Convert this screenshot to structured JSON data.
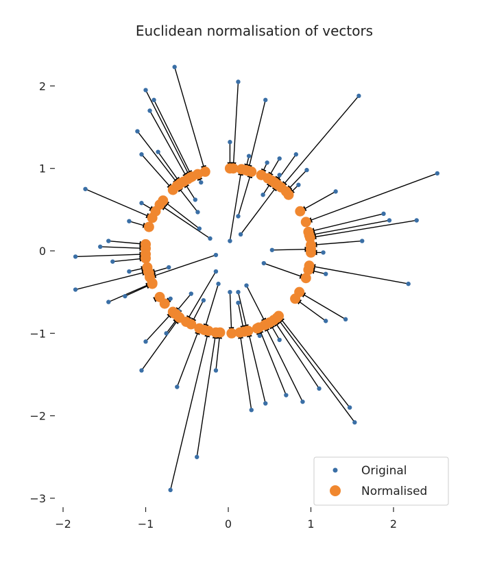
{
  "chart_data": {
    "type": "scatter",
    "title": "Euclidean normalisation of vectors",
    "xlabel": "",
    "ylabel": "",
    "xlim": [
      -2.0,
      2.7
    ],
    "ylim": [
      -3.0,
      2.3
    ],
    "xticks": [
      -2,
      -1,
      0,
      1,
      2
    ],
    "xtick_labels": [
      "−2",
      "−1",
      "0",
      "1",
      "2"
    ],
    "yticks": [
      -3,
      -2,
      -1,
      0,
      1,
      2
    ],
    "ytick_labels": [
      "−3",
      "−2",
      "−1",
      "0",
      "1",
      "2"
    ],
    "grid": false,
    "legend": "bottom-right",
    "colors": {
      "original": "#3a6fa6",
      "normalised": "#f0872f",
      "arrow": "#000000"
    },
    "series": [
      {
        "name": "Original",
        "marker": "small-dot",
        "points": [
          [
            -0.65,
            2.23
          ],
          [
            0.12,
            2.05
          ],
          [
            1.58,
            1.88
          ],
          [
            -1.0,
            1.95
          ],
          [
            -0.9,
            1.83
          ],
          [
            -0.95,
            1.7
          ],
          [
            0.45,
            1.83
          ],
          [
            -1.1,
            1.45
          ],
          [
            -1.05,
            1.17
          ],
          [
            -0.85,
            1.2
          ],
          [
            0.02,
            1.32
          ],
          [
            0.25,
            1.15
          ],
          [
            0.47,
            1.07
          ],
          [
            0.62,
            1.12
          ],
          [
            0.82,
            1.17
          ],
          [
            0.95,
            0.98
          ],
          [
            0.85,
            0.8
          ],
          [
            0.62,
            0.92
          ],
          [
            -1.73,
            0.75
          ],
          [
            -0.33,
            0.83
          ],
          [
            -0.37,
            0.47
          ],
          [
            -0.4,
            0.62
          ],
          [
            0.42,
            0.68
          ],
          [
            2.53,
            0.94
          ],
          [
            1.3,
            0.72
          ],
          [
            1.88,
            0.45
          ],
          [
            1.95,
            0.37
          ],
          [
            2.28,
            0.37
          ],
          [
            1.62,
            0.12
          ],
          [
            -1.05,
            0.58
          ],
          [
            -1.2,
            0.36
          ],
          [
            -0.35,
            0.27
          ],
          [
            -0.22,
            0.15
          ],
          [
            0.15,
            0.2
          ],
          [
            0.12,
            0.42
          ],
          [
            0.02,
            0.12
          ],
          [
            -1.45,
            0.12
          ],
          [
            -1.55,
            0.05
          ],
          [
            -1.85,
            -0.07
          ],
          [
            -1.4,
            -0.13
          ],
          [
            -1.2,
            -0.25
          ],
          [
            -1.85,
            -0.47
          ],
          [
            -0.15,
            -0.05
          ],
          [
            0.53,
            0.01
          ],
          [
            1.15,
            -0.02
          ],
          [
            1.18,
            -0.28
          ],
          [
            0.43,
            -0.15
          ],
          [
            2.18,
            -0.4
          ],
          [
            -1.45,
            -0.62
          ],
          [
            -1.25,
            -0.55
          ],
          [
            -0.72,
            -0.2
          ],
          [
            -0.12,
            -0.4
          ],
          [
            -0.15,
            -0.25
          ],
          [
            1.42,
            -0.83
          ],
          [
            1.18,
            -0.85
          ],
          [
            -0.7,
            -0.58
          ],
          [
            -0.85,
            -0.57
          ],
          [
            -0.45,
            -0.52
          ],
          [
            -0.3,
            -0.6
          ],
          [
            -0.6,
            -0.73
          ],
          [
            -0.75,
            -1.0
          ],
          [
            -1.0,
            -1.1
          ],
          [
            -1.05,
            -1.45
          ],
          [
            -0.62,
            -1.65
          ],
          [
            -0.38,
            -2.5
          ],
          [
            -0.7,
            -2.9
          ],
          [
            -0.15,
            -1.45
          ],
          [
            0.02,
            -0.5
          ],
          [
            0.12,
            -0.5
          ],
          [
            0.22,
            -0.42
          ],
          [
            0.12,
            -0.63
          ],
          [
            0.28,
            -1.93
          ],
          [
            0.45,
            -1.85
          ],
          [
            0.7,
            -1.75
          ],
          [
            0.9,
            -1.83
          ],
          [
            1.1,
            -1.67
          ],
          [
            1.47,
            -1.9
          ],
          [
            1.53,
            -2.08
          ],
          [
            0.38,
            -1.03
          ],
          [
            0.62,
            -1.08
          ]
        ]
      },
      {
        "name": "Normalised",
        "marker": "large-dot",
        "points": [
          [
            -0.28,
            0.96
          ],
          [
            0.06,
            1.0
          ],
          [
            0.64,
            0.77
          ],
          [
            -0.46,
            0.89
          ],
          [
            -0.44,
            0.9
          ],
          [
            -0.49,
            0.87
          ],
          [
            0.24,
            0.97
          ],
          [
            -0.6,
            0.8
          ],
          [
            -0.67,
            0.74
          ],
          [
            -0.58,
            0.82
          ],
          [
            0.02,
            1.0
          ],
          [
            0.21,
            0.98
          ],
          [
            0.4,
            0.92
          ],
          [
            0.48,
            0.88
          ],
          [
            0.57,
            0.82
          ],
          [
            0.7,
            0.72
          ],
          [
            0.73,
            0.68
          ],
          [
            0.56,
            0.83
          ],
          [
            -0.92,
            0.4
          ],
          [
            -0.37,
            0.93
          ],
          [
            -0.62,
            0.79
          ],
          [
            -0.54,
            0.84
          ],
          [
            0.53,
            0.85
          ],
          [
            0.94,
            0.35
          ],
          [
            0.87,
            0.48
          ],
          [
            0.97,
            0.23
          ],
          [
            0.98,
            0.19
          ],
          [
            0.99,
            0.16
          ],
          [
            1.0,
            0.07
          ],
          [
            -0.88,
            0.48
          ],
          [
            -0.96,
            0.29
          ],
          [
            -0.79,
            0.61
          ],
          [
            -0.83,
            0.56
          ],
          [
            0.6,
            0.8
          ],
          [
            0.28,
            0.96
          ],
          [
            0.16,
            0.99
          ],
          [
            -1.0,
            0.08
          ],
          [
            -1.0,
            0.03
          ],
          [
            -1.0,
            -0.04
          ],
          [
            -1.0,
            -0.09
          ],
          [
            -0.98,
            -0.2
          ],
          [
            -0.97,
            -0.25
          ],
          [
            -0.95,
            -0.32
          ],
          [
            1.0,
            0.02
          ],
          [
            1.0,
            -0.02
          ],
          [
            0.97,
            -0.23
          ],
          [
            0.94,
            -0.33
          ],
          [
            0.98,
            -0.18
          ],
          [
            -0.92,
            -0.39
          ],
          [
            -0.92,
            -0.4
          ],
          [
            -0.96,
            -0.27
          ],
          [
            -0.29,
            -0.96
          ],
          [
            -0.51,
            -0.86
          ],
          [
            0.86,
            -0.5
          ],
          [
            0.81,
            -0.58
          ],
          [
            -0.77,
            -0.64
          ],
          [
            -0.83,
            -0.56
          ],
          [
            -0.65,
            -0.76
          ],
          [
            -0.45,
            -0.89
          ],
          [
            -0.63,
            -0.77
          ],
          [
            -0.6,
            -0.8
          ],
          [
            -0.67,
            -0.74
          ],
          [
            -0.59,
            -0.81
          ],
          [
            -0.35,
            -0.94
          ],
          [
            -0.15,
            -0.99
          ],
          [
            -0.24,
            -0.97
          ],
          [
            -0.1,
            -0.99
          ],
          [
            0.04,
            -1.0
          ],
          [
            0.23,
            -0.97
          ],
          [
            0.46,
            -0.89
          ],
          [
            0.19,
            -0.98
          ],
          [
            0.14,
            -0.99
          ],
          [
            0.24,
            -0.97
          ],
          [
            0.37,
            -0.93
          ],
          [
            0.44,
            -0.9
          ],
          [
            0.55,
            -0.84
          ],
          [
            0.61,
            -0.79
          ],
          [
            0.59,
            -0.81
          ],
          [
            0.35,
            -0.94
          ],
          [
            0.5,
            -0.87
          ]
        ]
      }
    ]
  }
}
